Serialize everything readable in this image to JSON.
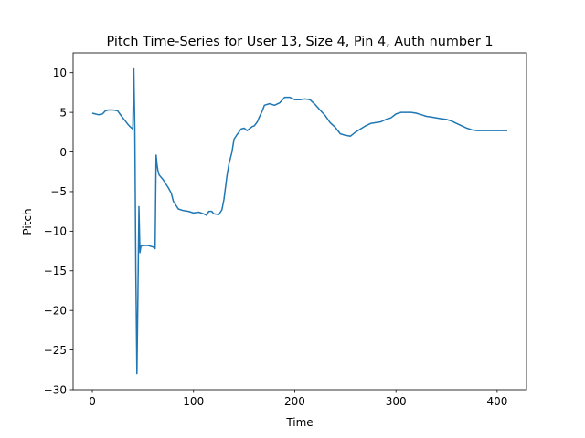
{
  "chart_data": {
    "type": "line",
    "title": "Pitch Time-Series for User 13, Size 4, Pin 4, Auth number 1",
    "xlabel": "Time",
    "ylabel": "Pitch",
    "xlim": [
      -19,
      429
    ],
    "ylim": [
      -30,
      12.5
    ],
    "xticks": [
      0,
      100,
      200,
      300,
      400
    ],
    "yticks": [
      10,
      5,
      0,
      -5,
      -10,
      -15,
      -20,
      -25,
      -30
    ],
    "grid": false,
    "line_color": "#1f77b4",
    "series": [
      {
        "x": [
          0,
          3,
          6,
          10,
          13,
          16,
          20,
          25,
          29,
          32,
          35,
          38,
          40,
          41,
          42,
          43,
          44,
          45,
          46,
          47,
          48,
          50,
          55,
          60,
          62,
          63,
          64,
          65,
          66,
          70,
          75,
          78,
          80,
          85,
          90,
          95,
          100,
          105,
          110,
          113,
          115,
          118,
          120,
          125,
          128,
          130,
          131,
          132,
          133,
          135,
          138,
          140,
          143,
          147,
          150,
          153,
          155,
          158,
          160,
          163,
          165,
          168,
          170,
          175,
          180,
          185,
          190,
          195,
          200,
          205,
          210,
          215,
          220,
          225,
          230,
          235,
          240,
          245,
          250,
          255,
          260,
          265,
          270,
          275,
          280,
          285,
          290,
          295,
          300,
          305,
          310,
          315,
          320,
          325,
          330,
          335,
          340,
          345,
          350,
          355,
          360,
          365,
          370,
          375,
          380,
          385,
          390,
          395,
          400,
          405,
          410
        ],
        "y": [
          4.9,
          4.8,
          4.7,
          4.8,
          5.2,
          5.3,
          5.3,
          5.2,
          4.5,
          4.0,
          3.5,
          3.1,
          2.9,
          10.6,
          3.0,
          -15.0,
          -28.0,
          -18.0,
          -6.9,
          -12.7,
          -11.9,
          -11.8,
          -11.8,
          -12.0,
          -12.2,
          -0.4,
          -1.7,
          -2.5,
          -2.9,
          -3.5,
          -4.5,
          -5.2,
          -6.2,
          -7.2,
          -7.4,
          -7.5,
          -7.7,
          -7.6,
          -7.8,
          -8.0,
          -7.5,
          -7.5,
          -7.8,
          -7.9,
          -7.3,
          -6.0,
          -5.0,
          -4.0,
          -3.0,
          -1.5,
          0.0,
          1.6,
          2.2,
          2.9,
          3.0,
          2.7,
          2.9,
          3.2,
          3.3,
          3.8,
          4.4,
          5.2,
          5.9,
          6.1,
          5.9,
          6.2,
          6.9,
          6.9,
          6.6,
          6.6,
          6.7,
          6.6,
          6.0,
          5.3,
          4.6,
          3.7,
          3.1,
          2.3,
          2.1,
          2.0,
          2.5,
          2.9,
          3.3,
          3.6,
          3.7,
          3.8,
          4.1,
          4.3,
          4.8,
          5.0,
          5.0,
          5.0,
          4.9,
          4.7,
          4.5,
          4.4,
          4.3,
          4.2,
          4.1,
          3.9,
          3.6,
          3.3,
          3.0,
          2.8,
          2.7,
          2.7,
          2.7,
          2.7,
          2.7,
          2.7,
          2.7
        ]
      }
    ]
  }
}
